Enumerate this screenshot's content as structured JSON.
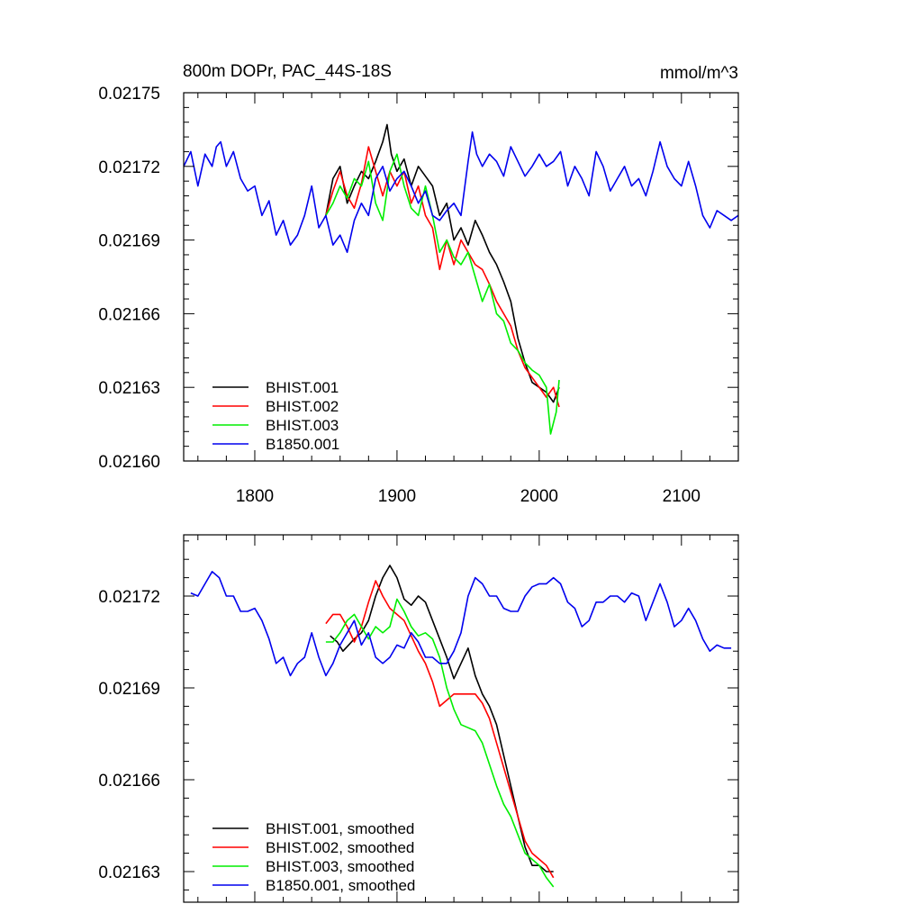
{
  "chart_data": [
    {
      "type": "line",
      "title": "800m DOPr, PAC_44S-18S",
      "units": "mmol/m^3",
      "xlim": [
        1750,
        2140
      ],
      "ylim": [
        0.0216,
        0.02175
      ],
      "xticks": [
        1800,
        1900,
        2000,
        2100
      ],
      "yticks": [
        0.0216,
        0.02163,
        0.02166,
        0.02169,
        0.02172,
        0.02175
      ],
      "ytick_labels": [
        "0.02160",
        "0.02163",
        "0.02166",
        "0.02169",
        "0.02172",
        "0.02175"
      ],
      "legend": "bottom-left",
      "series": [
        {
          "name": "BHIST.001",
          "color": "#000000",
          "x": [
            1850,
            1855,
            1860,
            1865,
            1870,
            1875,
            1880,
            1885,
            1890,
            1893,
            1896,
            1900,
            1905,
            1910,
            1915,
            1920,
            1925,
            1930,
            1935,
            1940,
            1945,
            1950,
            1955,
            1960,
            1965,
            1970,
            1975,
            1980,
            1985,
            1990,
            1995,
            2000,
            2005,
            2010,
            2014
          ],
          "y": [
            0.0217,
            0.021715,
            0.02172,
            0.021705,
            0.021712,
            0.021718,
            0.021715,
            0.021722,
            0.02173,
            0.021737,
            0.021725,
            0.021718,
            0.021723,
            0.021712,
            0.02172,
            0.021716,
            0.021712,
            0.0217,
            0.021705,
            0.02169,
            0.021695,
            0.021688,
            0.021698,
            0.021692,
            0.021685,
            0.02168,
            0.021673,
            0.021665,
            0.02165,
            0.02164,
            0.021632,
            0.02163,
            0.021628,
            0.021624,
            0.02163
          ]
        },
        {
          "name": "BHIST.002",
          "color": "#ff0000",
          "x": [
            1850,
            1855,
            1860,
            1865,
            1870,
            1875,
            1880,
            1885,
            1890,
            1895,
            1900,
            1905,
            1910,
            1915,
            1920,
            1925,
            1930,
            1935,
            1940,
            1945,
            1950,
            1955,
            1960,
            1965,
            1970,
            1975,
            1980,
            1985,
            1990,
            1995,
            2000,
            2005,
            2010,
            2014
          ],
          "y": [
            0.0217,
            0.02171,
            0.021718,
            0.021708,
            0.021703,
            0.021713,
            0.021728,
            0.021718,
            0.021708,
            0.021718,
            0.021712,
            0.021718,
            0.021705,
            0.021712,
            0.0217,
            0.021695,
            0.021678,
            0.02169,
            0.02168,
            0.02169,
            0.021685,
            0.02168,
            0.021678,
            0.021672,
            0.021665,
            0.02166,
            0.021655,
            0.021645,
            0.021638,
            0.021634,
            0.02163,
            0.021626,
            0.02163,
            0.021622
          ]
        },
        {
          "name": "BHIST.003",
          "color": "#00ee00",
          "x": [
            1850,
            1855,
            1860,
            1865,
            1870,
            1875,
            1880,
            1885,
            1890,
            1895,
            1900,
            1905,
            1910,
            1915,
            1920,
            1925,
            1930,
            1935,
            1940,
            1945,
            1950,
            1955,
            1960,
            1965,
            1970,
            1975,
            1980,
            1985,
            1990,
            1995,
            2000,
            2005,
            2008,
            2012,
            2014
          ],
          "y": [
            0.0217,
            0.021705,
            0.021712,
            0.021707,
            0.021715,
            0.021712,
            0.021722,
            0.021705,
            0.021698,
            0.021718,
            0.021725,
            0.021712,
            0.021703,
            0.0217,
            0.021712,
            0.0217,
            0.021685,
            0.02169,
            0.021683,
            0.02168,
            0.021685,
            0.021675,
            0.021665,
            0.021672,
            0.02166,
            0.021657,
            0.021648,
            0.021645,
            0.02164,
            0.021637,
            0.021635,
            0.02163,
            0.021611,
            0.02162,
            0.021633
          ]
        },
        {
          "name": "B1850.001",
          "color": "#0000ee",
          "x": [
            1750,
            1755,
            1760,
            1765,
            1770,
            1773,
            1776,
            1780,
            1785,
            1790,
            1795,
            1800,
            1805,
            1810,
            1815,
            1820,
            1825,
            1830,
            1835,
            1840,
            1845,
            1850,
            1855,
            1860,
            1865,
            1870,
            1875,
            1880,
            1885,
            1890,
            1895,
            1900,
            1905,
            1910,
            1915,
            1920,
            1925,
            1930,
            1935,
            1940,
            1945,
            1950,
            1953,
            1956,
            1960,
            1965,
            1970,
            1975,
            1980,
            1985,
            1990,
            1995,
            2000,
            2005,
            2010,
            2015,
            2020,
            2025,
            2030,
            2035,
            2040,
            2045,
            2050,
            2055,
            2060,
            2065,
            2070,
            2075,
            2080,
            2085,
            2090,
            2095,
            2100,
            2105,
            2110,
            2115,
            2120,
            2125,
            2130,
            2135,
            2140
          ],
          "y": [
            0.02172,
            0.021726,
            0.021712,
            0.021725,
            0.02172,
            0.021728,
            0.02173,
            0.02172,
            0.021726,
            0.021715,
            0.02171,
            0.021712,
            0.0217,
            0.021706,
            0.021692,
            0.021698,
            0.021688,
            0.021692,
            0.0217,
            0.021712,
            0.021695,
            0.0217,
            0.021688,
            0.021692,
            0.021685,
            0.021698,
            0.021705,
            0.0217,
            0.021715,
            0.02172,
            0.02171,
            0.021715,
            0.021718,
            0.021712,
            0.021705,
            0.02171,
            0.0217,
            0.021698,
            0.021702,
            0.021705,
            0.0217,
            0.021722,
            0.021734,
            0.021725,
            0.02172,
            0.021725,
            0.021722,
            0.021716,
            0.021728,
            0.021722,
            0.021716,
            0.02172,
            0.021725,
            0.02172,
            0.021722,
            0.021726,
            0.021712,
            0.02172,
            0.021715,
            0.021708,
            0.021726,
            0.02172,
            0.02171,
            0.021715,
            0.02172,
            0.021712,
            0.021715,
            0.021708,
            0.021718,
            0.02173,
            0.02172,
            0.021715,
            0.021712,
            0.021722,
            0.021712,
            0.0217,
            0.021695,
            0.021702,
            0.0217,
            0.021698,
            0.0217
          ]
        }
      ]
    },
    {
      "type": "line",
      "xlim": [
        1750,
        2140
      ],
      "ylim": [
        0.02162,
        0.02174
      ],
      "xticks": [
        1800,
        1900,
        2000,
        2100
      ],
      "yticks": [
        0.02163,
        0.02166,
        0.02169,
        0.02172
      ],
      "ytick_labels": [
        "0.02163",
        "0.02166",
        "0.02169",
        "0.02172"
      ],
      "legend": "bottom-left",
      "series": [
        {
          "name": "BHIST.001, smoothed",
          "color": "#000000",
          "x": [
            1853,
            1858,
            1862,
            1866,
            1870,
            1875,
            1880,
            1885,
            1890,
            1895,
            1900,
            1905,
            1910,
            1915,
            1920,
            1925,
            1930,
            1935,
            1940,
            1945,
            1950,
            1955,
            1960,
            1965,
            1970,
            1975,
            1980,
            1985,
            1990,
            1995,
            2000,
            2005,
            2010
          ],
          "y": [
            0.021707,
            0.021705,
            0.021702,
            0.021704,
            0.021706,
            0.021708,
            0.021712,
            0.02172,
            0.021726,
            0.02173,
            0.021726,
            0.021719,
            0.021717,
            0.02172,
            0.021718,
            0.021712,
            0.021706,
            0.0217,
            0.021693,
            0.021698,
            0.021703,
            0.021694,
            0.021688,
            0.021684,
            0.021678,
            0.021668,
            0.021658,
            0.021648,
            0.021638,
            0.021632,
            0.021632,
            0.02163,
            0.02163
          ]
        },
        {
          "name": "BHIST.002, smoothed",
          "color": "#ff0000",
          "x": [
            1850,
            1855,
            1860,
            1865,
            1870,
            1875,
            1880,
            1885,
            1890,
            1895,
            1900,
            1905,
            1910,
            1915,
            1920,
            1925,
            1930,
            1935,
            1940,
            1945,
            1950,
            1955,
            1960,
            1965,
            1970,
            1975,
            1980,
            1985,
            1990,
            1995,
            2000,
            2005,
            2010
          ],
          "y": [
            0.021711,
            0.021714,
            0.021714,
            0.02171,
            0.021705,
            0.02171,
            0.021718,
            0.021725,
            0.02172,
            0.021716,
            0.021714,
            0.021712,
            0.021707,
            0.021702,
            0.021698,
            0.021692,
            0.021684,
            0.021686,
            0.021688,
            0.021688,
            0.021688,
            0.021688,
            0.021685,
            0.02168,
            0.021672,
            0.021664,
            0.021656,
            0.021648,
            0.02164,
            0.021636,
            0.021634,
            0.021632,
            0.021628
          ]
        },
        {
          "name": "BHIST.003, smoothed",
          "color": "#00ee00",
          "x": [
            1850,
            1855,
            1860,
            1865,
            1870,
            1875,
            1880,
            1885,
            1890,
            1895,
            1900,
            1905,
            1910,
            1915,
            1920,
            1925,
            1930,
            1935,
            1940,
            1945,
            1950,
            1955,
            1960,
            1965,
            1970,
            1975,
            1980,
            1985,
            1990,
            1995,
            2000,
            2005,
            2010
          ],
          "y": [
            0.021705,
            0.021705,
            0.021708,
            0.021712,
            0.021714,
            0.02171,
            0.021706,
            0.02171,
            0.021708,
            0.02171,
            0.021719,
            0.021715,
            0.02171,
            0.021707,
            0.021708,
            0.021706,
            0.0217,
            0.02169,
            0.021683,
            0.021678,
            0.021677,
            0.021676,
            0.021672,
            0.021665,
            0.021658,
            0.021652,
            0.021648,
            0.021642,
            0.021636,
            0.021634,
            0.021632,
            0.021628,
            0.021625
          ]
        },
        {
          "name": "B1850.001, smoothed",
          "color": "#0000ee",
          "x": [
            1755,
            1760,
            1765,
            1770,
            1775,
            1780,
            1785,
            1790,
            1795,
            1800,
            1805,
            1810,
            1815,
            1820,
            1825,
            1830,
            1835,
            1840,
            1845,
            1850,
            1855,
            1860,
            1865,
            1870,
            1875,
            1880,
            1885,
            1890,
            1895,
            1900,
            1905,
            1910,
            1915,
            1920,
            1925,
            1930,
            1935,
            1940,
            1945,
            1950,
            1955,
            1960,
            1965,
            1970,
            1975,
            1980,
            1985,
            1990,
            1995,
            2000,
            2005,
            2010,
            2015,
            2020,
            2025,
            2030,
            2035,
            2040,
            2045,
            2050,
            2055,
            2060,
            2065,
            2070,
            2075,
            2080,
            2085,
            2090,
            2095,
            2100,
            2105,
            2110,
            2115,
            2120,
            2125,
            2130,
            2135
          ],
          "y": [
            0.021721,
            0.02172,
            0.021724,
            0.021728,
            0.021726,
            0.02172,
            0.02172,
            0.021715,
            0.021715,
            0.021716,
            0.021712,
            0.021706,
            0.021698,
            0.0217,
            0.021694,
            0.021698,
            0.0217,
            0.021708,
            0.0217,
            0.021694,
            0.021698,
            0.021704,
            0.021708,
            0.021712,
            0.021704,
            0.021708,
            0.0217,
            0.021698,
            0.0217,
            0.021704,
            0.021703,
            0.021708,
            0.021705,
            0.0217,
            0.0217,
            0.021698,
            0.021698,
            0.021702,
            0.021708,
            0.02172,
            0.021726,
            0.021724,
            0.02172,
            0.02172,
            0.021716,
            0.021715,
            0.021715,
            0.02172,
            0.021723,
            0.021724,
            0.021724,
            0.021726,
            0.021724,
            0.021718,
            0.021716,
            0.02171,
            0.021712,
            0.021718,
            0.021718,
            0.02172,
            0.02172,
            0.021718,
            0.021721,
            0.02172,
            0.021712,
            0.021718,
            0.021724,
            0.021718,
            0.02171,
            0.021712,
            0.021716,
            0.021712,
            0.021706,
            0.021702,
            0.021704,
            0.021703,
            0.021703
          ]
        }
      ]
    }
  ]
}
